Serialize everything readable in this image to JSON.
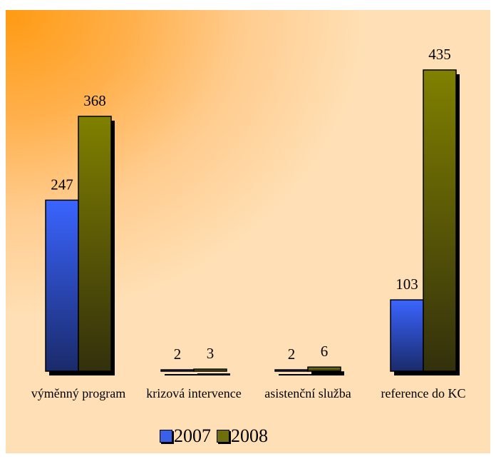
{
  "chart_data": {
    "type": "bar",
    "categories": [
      "výměnný program",
      "krizová intervence",
      "asistenční služba",
      "reference do KC"
    ],
    "series": [
      {
        "name": "2007",
        "values": [
          247,
          2,
          2,
          103
        ],
        "color": "#3a5fe8"
      },
      {
        "name": "2008",
        "values": [
          368,
          3,
          6,
          435
        ],
        "color": "#6e6e0a"
      }
    ],
    "ylim": [
      0,
      435
    ],
    "grid": false,
    "legend": "bottom-center"
  },
  "legend": {
    "items": [
      {
        "label": "2007",
        "color": "#3a5fe8"
      },
      {
        "label": "2008",
        "color": "#6e6e0a"
      }
    ]
  }
}
